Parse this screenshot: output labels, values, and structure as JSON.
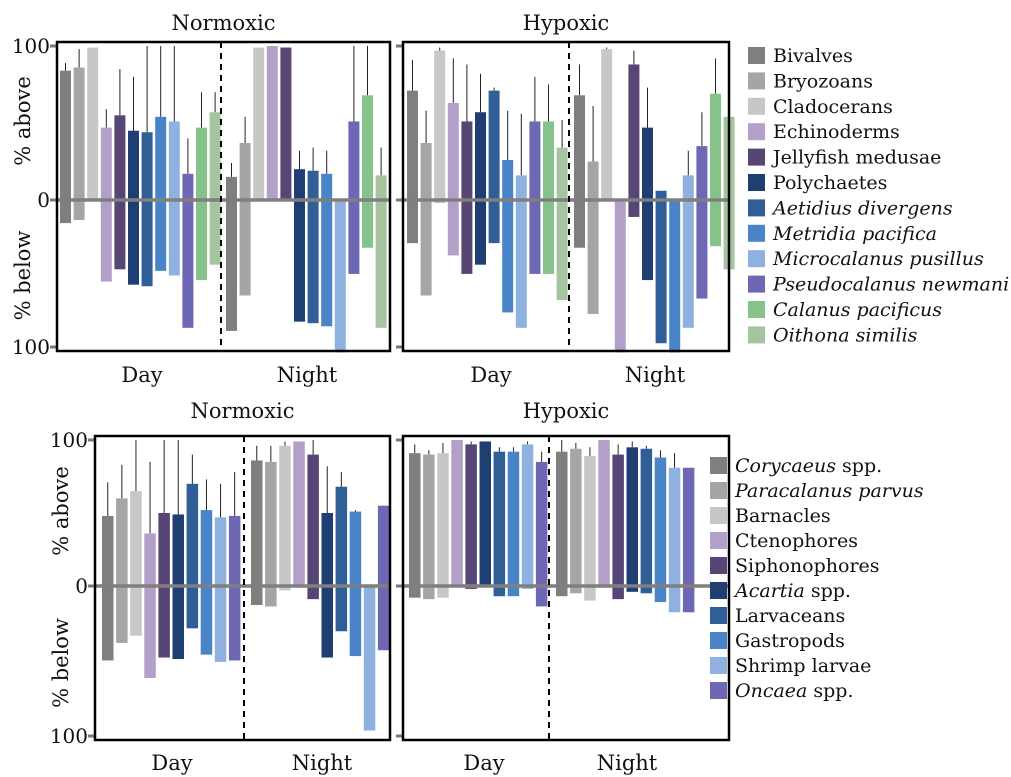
{
  "chart_data": [
    {
      "type": "bar",
      "title": "Normoxic",
      "ylabel_above": "% above",
      "ylabel_below": "% below",
      "y_ticks": [
        "100",
        "0",
        "100"
      ],
      "ylim": [
        -100,
        100
      ],
      "periods": [
        "Day",
        "Night"
      ],
      "series": [
        {
          "name": "Bivalves",
          "color": "#7f7f7f",
          "day": {
            "above": 84,
            "above_err": 89,
            "below": 15
          },
          "night": {
            "above": 15,
            "above_err": 24,
            "below": 85
          }
        },
        {
          "name": "Bryozoans",
          "color": "#a5a5a5",
          "day": {
            "above": 86,
            "above_err": 98,
            "below": 13
          },
          "night": {
            "above": 37,
            "above_err": 54,
            "below": 62
          }
        },
        {
          "name": "Cladocerans",
          "color": "#c7c7c7",
          "day": {
            "above": 99,
            "above_err": 99,
            "below": 0
          },
          "night": {
            "above": 99,
            "above_err": 99,
            "below": 0
          }
        },
        {
          "name": "Echinoderms",
          "color": "#b3a0c9",
          "day": {
            "above": 47,
            "above_err": 59,
            "below": 53
          },
          "night": {
            "above": 100,
            "above_err": 100,
            "below": 0
          }
        },
        {
          "name": "Jellyfish medusae",
          "color": "#574575",
          "day": {
            "above": 55,
            "above_err": 85,
            "below": 45
          },
          "night": {
            "above": 99,
            "above_err": 99,
            "below": 0
          }
        },
        {
          "name": "Polychaetes",
          "color": "#1f3f73",
          "day": {
            "above": 45,
            "above_err": 80,
            "below": 55
          },
          "night": {
            "above": 20,
            "above_err": 32,
            "below": 79
          }
        },
        {
          "name": "Aetidius divergens",
          "color": "#2f5f96",
          "day": {
            "above": 44,
            "above_err": 100,
            "below": 56
          },
          "night": {
            "above": 19,
            "above_err": 34,
            "below": 80
          }
        },
        {
          "name": "Metridia pacifica",
          "color": "#4a84c8",
          "day": {
            "above": 54,
            "above_err": 100,
            "below": 46
          },
          "night": {
            "above": 17,
            "above_err": 32,
            "below": 82
          }
        },
        {
          "name": "Microcalanus pusillus",
          "color": "#8fb1e0",
          "day": {
            "above": 51,
            "above_err": 100,
            "below": 49
          },
          "night": {
            "above": 0,
            "above_err": 0,
            "below": 99
          }
        },
        {
          "name": "Pseudocalanus newmani",
          "color": "#6e68b4",
          "day": {
            "above": 17,
            "above_err": 40,
            "below": 83
          },
          "night": {
            "above": 51,
            "above_err": 100,
            "below": 48
          }
        },
        {
          "name": "Calanus pacificus",
          "color": "#86c38b",
          "day": {
            "above": 47,
            "above_err": 70,
            "below": 52
          },
          "night": {
            "above": 68,
            "above_err": 100,
            "below": 31
          }
        },
        {
          "name": "Oithona similis",
          "color": "#a6c4a0",
          "day": {
            "above": 57,
            "above_err": 70,
            "below": 42
          },
          "night": {
            "above": 16,
            "above_err": 34,
            "below": 83
          }
        }
      ]
    },
    {
      "type": "bar",
      "title": "Hypoxic",
      "y_ticks": [
        "",
        "",
        ""
      ],
      "ylim": [
        -100,
        100
      ],
      "periods": [
        "Day",
        "Night"
      ],
      "series": [
        {
          "name": "Bivalves",
          "color": "#7f7f7f",
          "day": {
            "above": 71,
            "above_err": 91,
            "below": 28
          },
          "night": {
            "above": 68,
            "above_err": 88,
            "below": 31
          }
        },
        {
          "name": "Bryozoans",
          "color": "#a5a5a5",
          "day": {
            "above": 37,
            "above_err": 58,
            "below": 62
          },
          "night": {
            "above": 25,
            "above_err": 61,
            "below": 74
          }
        },
        {
          "name": "Cladocerans",
          "color": "#c7c7c7",
          "day": {
            "above": 97,
            "above_err": 99,
            "below": 2
          },
          "night": {
            "above": 98,
            "above_err": 99,
            "below": 1
          }
        },
        {
          "name": "Echinoderms",
          "color": "#b3a0c9",
          "day": {
            "above": 63,
            "above_err": 92,
            "below": 36
          },
          "night": {
            "above": 0,
            "above_err": 0,
            "below": 99
          }
        },
        {
          "name": "Jellyfish medusae",
          "color": "#574575",
          "day": {
            "above": 51,
            "above_err": 88,
            "below": 48
          },
          "night": {
            "above": 88,
            "above_err": 97,
            "below": 11
          }
        },
        {
          "name": "Polychaetes",
          "color": "#1f3f73",
          "day": {
            "above": 57,
            "above_err": 82,
            "below": 42
          },
          "night": {
            "above": 47,
            "above_err": 73,
            "below": 52
          }
        },
        {
          "name": "Aetidius divergens",
          "color": "#2f5f96",
          "day": {
            "above": 71,
            "above_err": 73,
            "below": 28
          },
          "night": {
            "above": 6,
            "above_err": 6,
            "below": 93
          }
        },
        {
          "name": "Metridia pacifica",
          "color": "#4a84c8",
          "day": {
            "above": 26,
            "above_err": 58,
            "below": 73
          },
          "night": {
            "above": 0,
            "above_err": 0,
            "below": 99
          }
        },
        {
          "name": "Microcalanus pusillus",
          "color": "#8fb1e0",
          "day": {
            "above": 16,
            "above_err": 56,
            "below": 83
          },
          "night": {
            "above": 16,
            "above_err": 32,
            "below": 83
          }
        },
        {
          "name": "Pseudocalanus newmani",
          "color": "#6e68b4",
          "day": {
            "above": 51,
            "above_err": 80,
            "below": 48
          },
          "night": {
            "above": 35,
            "above_err": 57,
            "below": 64
          }
        },
        {
          "name": "Calanus pacificus",
          "color": "#86c38b",
          "day": {
            "above": 51,
            "above_err": 75,
            "below": 48
          },
          "night": {
            "above": 69,
            "above_err": 92,
            "below": 30
          }
        },
        {
          "name": "Oithona similis",
          "color": "#a6c4a0",
          "day": {
            "above": 34,
            "above_err": 52,
            "below": 65
          },
          "night": {
            "above": 54,
            "above_err": 54,
            "below": 45
          }
        }
      ]
    },
    {
      "type": "bar",
      "title": "Normoxic",
      "ylabel_above": "% above",
      "ylabel_below": "% below",
      "y_ticks": [
        "100",
        "0",
        "100"
      ],
      "ylim": [
        -100,
        100
      ],
      "periods": [
        "Day",
        "Night"
      ],
      "series": [
        {
          "name": "Corycaeus spp.",
          "color": "#7f7f7f",
          "day": {
            "above": 48,
            "above_err": 71,
            "below": 51
          },
          "night": {
            "above": 86,
            "above_err": 96,
            "below": 13
          }
        },
        {
          "name": "Paracalanus parvus",
          "color": "#a5a5a5",
          "day": {
            "above": 60,
            "above_err": 83,
            "below": 39
          },
          "night": {
            "above": 85,
            "above_err": 96,
            "below": 14
          }
        },
        {
          "name": "Barnacles",
          "color": "#c7c7c7",
          "day": {
            "above": 65,
            "above_err": 100,
            "below": 34
          },
          "night": {
            "above": 96,
            "above_err": 99,
            "below": 3
          }
        },
        {
          "name": "Ctenophores",
          "color": "#b3a0c9",
          "day": {
            "above": 36,
            "above_err": 85,
            "below": 63
          },
          "night": {
            "above": 99,
            "above_err": 99,
            "below": 0
          }
        },
        {
          "name": "Siphonophores",
          "color": "#574575",
          "day": {
            "above": 50,
            "above_err": 100,
            "below": 49
          },
          "night": {
            "above": 90,
            "above_err": 100,
            "below": 9
          }
        },
        {
          "name": "Acartia spp.",
          "color": "#1f3f73",
          "day": {
            "above": 49,
            "above_err": 100,
            "below": 50
          },
          "night": {
            "above": 50,
            "above_err": 82,
            "below": 49
          }
        },
        {
          "name": "Larvaceans",
          "color": "#2f5f96",
          "day": {
            "above": 70,
            "above_err": 90,
            "below": 29
          },
          "night": {
            "above": 68,
            "above_err": 78,
            "below": 31
          }
        },
        {
          "name": "Gastropods",
          "color": "#4a84c8",
          "day": {
            "above": 52,
            "above_err": 73,
            "below": 47
          },
          "night": {
            "above": 51,
            "above_err": 52,
            "below": 48
          }
        },
        {
          "name": "Shrimp larvae",
          "color": "#8fb1e0",
          "day": {
            "above": 47,
            "above_err": 70,
            "below": 52
          },
          "night": {
            "above": 0,
            "above_err": 0,
            "below": 99
          }
        },
        {
          "name": "Oncaea spp.",
          "color": "#6e68b4",
          "day": {
            "above": 48,
            "above_err": 78,
            "below": 51
          },
          "night": {
            "above": 55,
            "above_err": 55,
            "below": 44
          }
        }
      ]
    },
    {
      "type": "bar",
      "title": "Hypoxic",
      "y_ticks": [
        "",
        "",
        ""
      ],
      "ylim": [
        -100,
        100
      ],
      "periods": [
        "Day",
        "Night"
      ],
      "series": [
        {
          "name": "Corycaeus spp.",
          "color": "#7f7f7f",
          "day": {
            "above": 91,
            "above_err": 97,
            "below": 8
          },
          "night": {
            "above": 92,
            "above_err": 100,
            "below": 7
          }
        },
        {
          "name": "Paracalanus parvus",
          "color": "#a5a5a5",
          "day": {
            "above": 90,
            "above_err": 93,
            "below": 9
          },
          "night": {
            "above": 94,
            "above_err": 98,
            "below": 5
          }
        },
        {
          "name": "Barnacles",
          "color": "#c7c7c7",
          "day": {
            "above": 91,
            "above_err": 98,
            "below": 8
          },
          "night": {
            "above": 89,
            "above_err": 95,
            "below": 10
          }
        },
        {
          "name": "Ctenophores",
          "color": "#b3a0c9",
          "day": {
            "above": 100,
            "above_err": 100,
            "below": 0
          },
          "night": {
            "above": 100,
            "above_err": 100,
            "below": 0
          }
        },
        {
          "name": "Siphonophores",
          "color": "#574575",
          "day": {
            "above": 97,
            "above_err": 99,
            "below": 2
          },
          "night": {
            "above": 90,
            "above_err": 97,
            "below": 9
          }
        },
        {
          "name": "Acartia spp.",
          "color": "#1f3f73",
          "day": {
            "above": 99,
            "above_err": 99,
            "below": 0
          },
          "night": {
            "above": 95,
            "above_err": 99,
            "below": 4
          }
        },
        {
          "name": "Larvaceans",
          "color": "#2f5f96",
          "day": {
            "above": 92,
            "above_err": 95,
            "below": 7
          },
          "night": {
            "above": 94,
            "above_err": 96,
            "below": 5
          }
        },
        {
          "name": "Gastropods",
          "color": "#4a84c8",
          "day": {
            "above": 92,
            "above_err": 95,
            "below": 7
          },
          "night": {
            "above": 88,
            "above_err": 93,
            "below": 11
          }
        },
        {
          "name": "Shrimp larvae",
          "color": "#8fb1e0",
          "day": {
            "above": 97,
            "above_err": 99,
            "below": 2
          },
          "night": {
            "above": 81,
            "above_err": 91,
            "below": 18
          }
        },
        {
          "name": "Oncaea spp.",
          "color": "#6e68b4",
          "day": {
            "above": 85,
            "above_err": 92,
            "below": 14
          },
          "night": {
            "above": 81,
            "above_err": 81,
            "below": 18
          }
        }
      ]
    }
  ],
  "legends": [
    {
      "items": [
        {
          "label": "Bivalves",
          "italic": false,
          "color": "#7f7f7f"
        },
        {
          "label": "Bryozoans",
          "italic": false,
          "color": "#a5a5a5"
        },
        {
          "label": "Cladocerans",
          "italic": false,
          "color": "#c7c7c7"
        },
        {
          "label": "Echinoderms",
          "italic": false,
          "color": "#b3a0c9"
        },
        {
          "label": "Jellyfish medusae",
          "italic": false,
          "color": "#574575"
        },
        {
          "label": "Polychaetes",
          "italic": false,
          "color": "#1f3f73"
        },
        {
          "label": "Aetidius divergens",
          "italic": true,
          "color": "#2f5f96"
        },
        {
          "label": "Metridia pacifica",
          "italic": true,
          "color": "#4a84c8"
        },
        {
          "label": "Microcalanus pusillus",
          "italic": true,
          "color": "#8fb1e0"
        },
        {
          "label": "Pseudocalanus newmani",
          "italic": true,
          "color": "#6e68b4"
        },
        {
          "label": "Calanus pacificus",
          "italic": true,
          "color": "#86c38b"
        },
        {
          "label": "Oithona similis",
          "italic": true,
          "color": "#a6c4a0"
        }
      ]
    },
    {
      "items": [
        {
          "label": "Corycaeus",
          "suffix": " spp.",
          "italic": true,
          "color": "#7f7f7f"
        },
        {
          "label": "Paracalanus parvus",
          "suffix": "",
          "italic": true,
          "color": "#a5a5a5"
        },
        {
          "label": "Barnacles",
          "suffix": "",
          "italic": false,
          "color": "#c7c7c7"
        },
        {
          "label": "Ctenophores",
          "suffix": "",
          "italic": false,
          "color": "#b3a0c9"
        },
        {
          "label": "Siphonophores",
          "suffix": "",
          "italic": false,
          "color": "#574575"
        },
        {
          "label": "Acartia",
          "suffix": " spp.",
          "italic": true,
          "color": "#1f3f73"
        },
        {
          "label": "Larvaceans",
          "suffix": "",
          "italic": false,
          "color": "#2f5f96"
        },
        {
          "label": "Gastropods",
          "suffix": "",
          "italic": false,
          "color": "#4a84c8"
        },
        {
          "label": "Shrimp larvae",
          "suffix": "",
          "italic": false,
          "color": "#8fb1e0"
        },
        {
          "label": "Oncaea",
          "suffix": " spp.",
          "italic": true,
          "color": "#6e68b4"
        }
      ]
    }
  ]
}
